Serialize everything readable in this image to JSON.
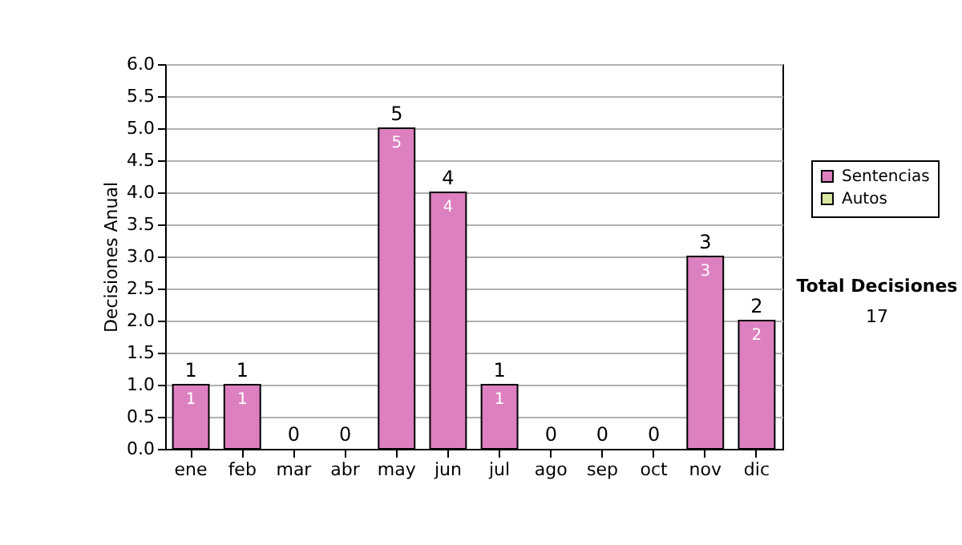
{
  "chart_data": {
    "type": "bar",
    "stacked": true,
    "ylabel": "Decisiones Anual",
    "categories": [
      "ene",
      "feb",
      "mar",
      "abr",
      "may",
      "jun",
      "jul",
      "ago",
      "sep",
      "oct",
      "nov",
      "dic"
    ],
    "series": [
      {
        "name": "Sentencias",
        "color": "#dd80c0",
        "values": [
          1,
          1,
          0,
          0,
          5,
          4,
          1,
          0,
          0,
          0,
          3,
          2
        ],
        "value_labels": [
          "1",
          "1",
          null,
          null,
          "5",
          "4",
          "1",
          null,
          null,
          null,
          "3",
          "2"
        ]
      },
      {
        "name": "Autos",
        "color": "#d8e8a0",
        "values": [
          0,
          0,
          0,
          0,
          0,
          0,
          0,
          0,
          0,
          0,
          0,
          0
        ]
      }
    ],
    "totals": [
      "1",
      "1",
      "0",
      "0",
      "5",
      "4",
      "1",
      "0",
      "0",
      "0",
      "3",
      "2"
    ],
    "ylim": [
      0,
      6
    ],
    "yticks": [
      {
        "value": 0,
        "label": "0.0"
      },
      {
        "value": 0.5,
        "label": "0.5"
      },
      {
        "value": 1,
        "label": "1.0"
      },
      {
        "value": 1.5,
        "label": "1.5"
      },
      {
        "value": 2,
        "label": "2.0"
      },
      {
        "value": 2.5,
        "label": "2.5"
      },
      {
        "value": 3,
        "label": "3.0"
      },
      {
        "value": 3.5,
        "label": "3.5"
      },
      {
        "value": 4,
        "label": "4.0"
      },
      {
        "value": 4.5,
        "label": "4.5"
      },
      {
        "value": 5,
        "label": "5.0"
      },
      {
        "value": 5.5,
        "label": "5.5"
      },
      {
        "value": 6,
        "label": "6.0"
      }
    ],
    "grid": "y",
    "legend": "right",
    "annotations": [
      "Total Decisiones",
      "17"
    ]
  }
}
